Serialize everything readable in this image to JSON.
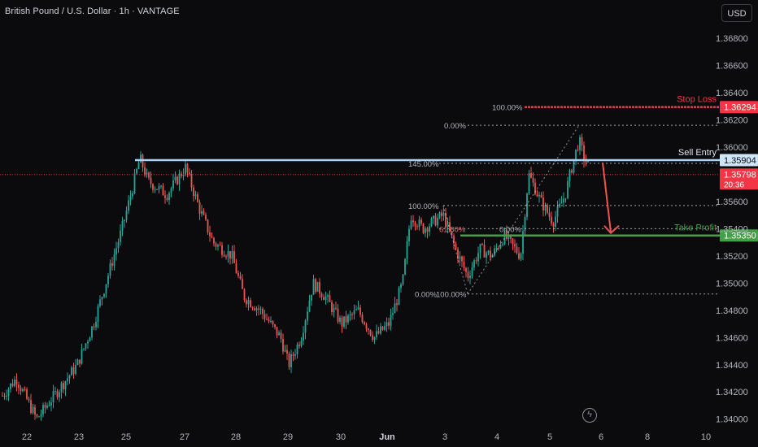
{
  "header": {
    "title": "British Pound / U.S. Dollar · 1h · VANTAGE",
    "currency_button": "USD"
  },
  "colors": {
    "background": "#0b0b0d",
    "up": "#26a69a",
    "down": "#ef5350",
    "stop_loss": "#f23645",
    "entry": "#a8d0f0",
    "take_profit": "#43a047",
    "fib": "#c8c8c8",
    "price_line": "#e53935"
  },
  "price_axis": {
    "ticks": [
      "1.36800",
      "1.36600",
      "1.36400",
      "1.36200",
      "1.36000",
      "1.35600",
      "1.35400",
      "1.35200",
      "1.35000",
      "1.34800",
      "1.34600",
      "1.34400",
      "1.34200",
      "1.34000"
    ]
  },
  "time_axis": {
    "labels": [
      "22",
      "23",
      "25",
      "27",
      "28",
      "29",
      "30",
      "Jun",
      "3",
      "4",
      "5",
      "6",
      "8",
      "10"
    ]
  },
  "levels": {
    "stop_loss": {
      "label": "Stop Loss",
      "price_label": "1.36294",
      "price": 1.36294
    },
    "sell_entry": {
      "label": "Sell Entry",
      "price_label": "1.35904",
      "price": 1.35904
    },
    "take_profit": {
      "label": "Take Profit",
      "price_label": "1.35350",
      "price": 1.3535
    },
    "current": {
      "price_label": "1.35798",
      "countdown": "20:36",
      "price": 1.35798
    }
  },
  "fib_labels": {
    "a": "100.00%",
    "b": "0.00%",
    "c": "145.00%",
    "d": "100.00%",
    "e": "61.80%",
    "f": "0.00%",
    "g": "0.00%",
    "h": "100.00%"
  },
  "chart_data": {
    "type": "candlestick",
    "title": "British Pound / U.S. Dollar · 1h · VANTAGE",
    "x_axis_labels": [
      "22",
      "23",
      "25",
      "27",
      "28",
      "29",
      "30",
      "Jun",
      "3",
      "4",
      "5",
      "6",
      "8",
      "10"
    ],
    "y_range": [
      1.3393,
      1.3693
    ],
    "horizontal_levels": [
      {
        "name": "Stop Loss",
        "value": 1.36294
      },
      {
        "name": "Sell Entry",
        "value": 1.35904
      },
      {
        "name": "Take Profit",
        "value": 1.3535
      }
    ],
    "current_price": 1.35798,
    "anchor_path": [
      [
        0,
        1.3415
      ],
      [
        20,
        1.343
      ],
      [
        45,
        1.34
      ],
      [
        70,
        1.342
      ],
      [
        95,
        1.344
      ],
      [
        115,
        1.347
      ],
      [
        135,
        1.351
      ],
      [
        150,
        1.354
      ],
      [
        163,
        1.357
      ],
      [
        172,
        1.3592
      ],
      [
        182,
        1.3575
      ],
      [
        205,
        1.3565
      ],
      [
        228,
        1.3585
      ],
      [
        245,
        1.3555
      ],
      [
        262,
        1.353
      ],
      [
        285,
        1.352
      ],
      [
        300,
        1.349
      ],
      [
        320,
        1.348
      ],
      [
        345,
        1.346
      ],
      [
        355,
        1.344
      ],
      [
        370,
        1.346
      ],
      [
        385,
        1.35
      ],
      [
        400,
        1.349
      ],
      [
        420,
        1.347
      ],
      [
        440,
        1.348
      ],
      [
        460,
        1.346
      ],
      [
        478,
        1.347
      ],
      [
        495,
        1.35
      ],
      [
        505,
        1.355
      ],
      [
        520,
        1.354
      ],
      [
        545,
        1.355
      ],
      [
        560,
        1.3525
      ],
      [
        575,
        1.3505
      ],
      [
        590,
        1.3525
      ],
      [
        605,
        1.352
      ],
      [
        620,
        1.3535
      ],
      [
        640,
        1.352
      ],
      [
        650,
        1.358
      ],
      [
        665,
        1.356
      ],
      [
        680,
        1.3545
      ],
      [
        695,
        1.3565
      ],
      [
        705,
        1.359
      ],
      [
        712,
        1.3605
      ],
      [
        718,
        1.3592
      ],
      [
        725,
        1.3585
      ]
    ]
  }
}
